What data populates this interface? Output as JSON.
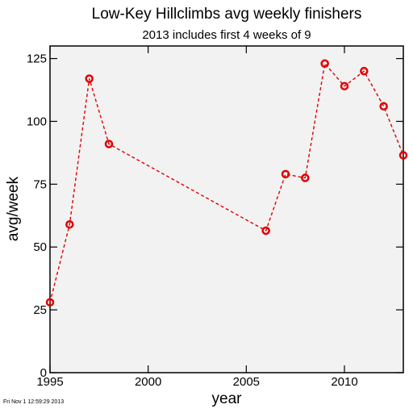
{
  "chart_data": {
    "type": "line",
    "title": "Low-Key Hillclimbs avg weekly finishers",
    "subtitle": "2013 includes first 4 weeks of 9",
    "xlabel": "year",
    "ylabel": "avg/week",
    "xlim": [
      1995,
      2013
    ],
    "ylim": [
      0,
      130
    ],
    "xticks": [
      1995,
      2000,
      2005,
      2010
    ],
    "yticks": [
      0,
      25,
      50,
      75,
      100,
      125
    ],
    "xtick_labels": [
      "1995",
      "2000",
      "2005",
      "2010"
    ],
    "ytick_labels": [
      "0",
      "25",
      "50",
      "75",
      "100",
      "125"
    ],
    "grid": false,
    "series": [
      {
        "x": [
          1995,
          1996,
          1997,
          1998,
          2006,
          2007,
          2008,
          2009,
          2010,
          2011,
          2012,
          2013
        ],
        "y": [
          28,
          59,
          117,
          91,
          56.5,
          79,
          77.5,
          123,
          114,
          120,
          106,
          86.5
        ],
        "color": "#e00000",
        "line_style": "dashed",
        "marker": "circle"
      }
    ],
    "colors": {
      "background": "#ffffff",
      "plot_background": "#f2f2f2",
      "series": "#e00000",
      "axis": "#000000"
    }
  },
  "footer": {
    "timestamp": "Fri Nov  1 12:59:29 2013"
  }
}
